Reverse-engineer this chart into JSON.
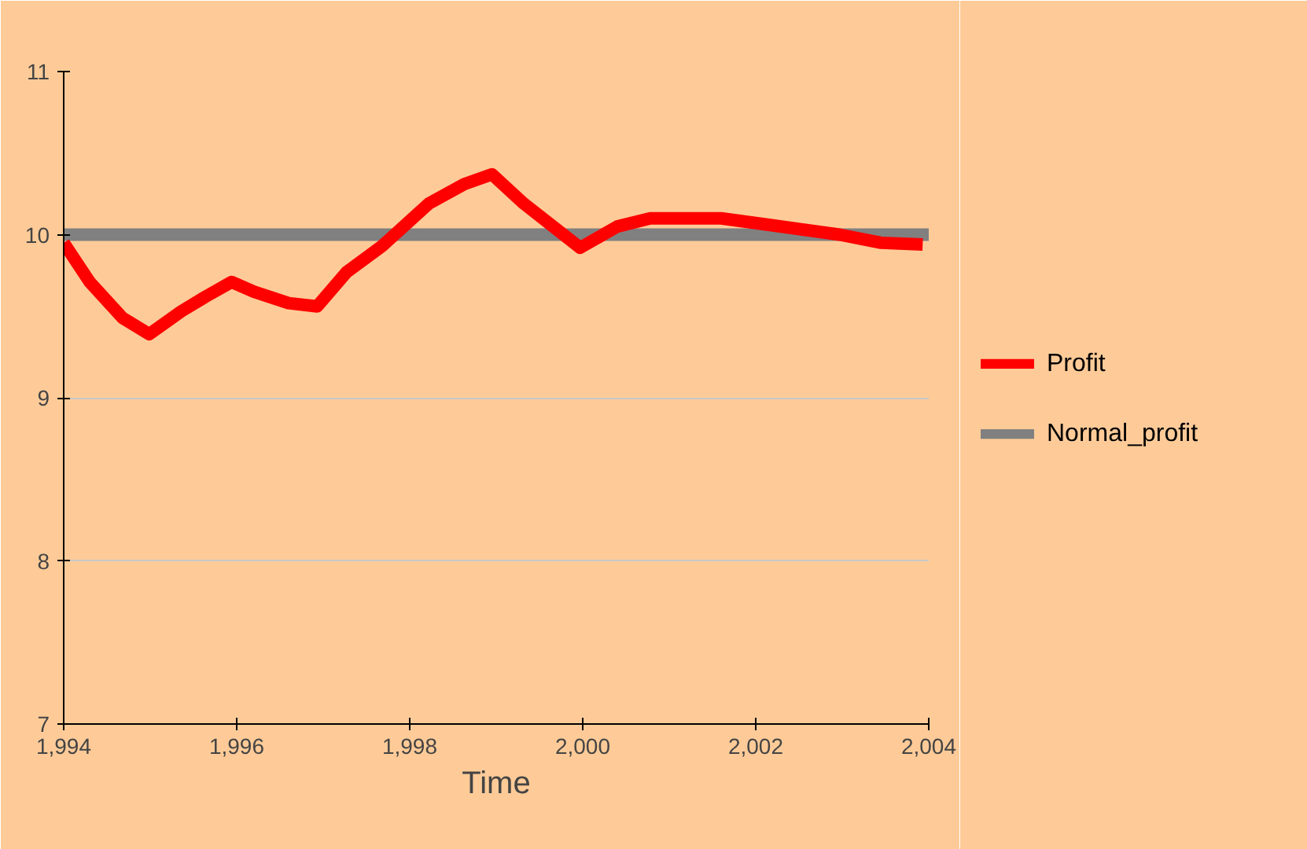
{
  "chart_data": {
    "type": "line",
    "xlabel": "Time",
    "xlim": [
      1994,
      2004
    ],
    "ylim": [
      7,
      11
    ],
    "xticks": [
      {
        "value": 1994,
        "label": "1,994"
      },
      {
        "value": 1996,
        "label": "1,996"
      },
      {
        "value": 1998,
        "label": "1,998"
      },
      {
        "value": 2000,
        "label": "2,000"
      },
      {
        "value": 2002,
        "label": "2,002"
      },
      {
        "value": 2004,
        "label": "2,004"
      }
    ],
    "yticks": [
      7,
      8,
      9,
      10,
      11
    ],
    "grid": "y",
    "legend": "right",
    "marker": "none",
    "line_style": "solid",
    "series": [
      {
        "name": "Profit",
        "color": "#ff0000",
        "x": [
          1994,
          1994.3,
          1994.68,
          1994.99,
          1995.36,
          1995.64,
          1995.94,
          1996.2,
          1996.6,
          1996.93,
          1997.27,
          1997.68,
          1998.22,
          1998.63,
          1998.95,
          1999.32,
          1999.97,
          2000.4,
          2000.78,
          2001.6,
          2002.15,
          2002.97,
          2003.45,
          2003.93
        ],
        "values": [
          9.95,
          9.71,
          9.49,
          9.39,
          9.53,
          9.62,
          9.71,
          9.65,
          9.58,
          9.56,
          9.77,
          9.93,
          10.19,
          10.31,
          10.37,
          10.19,
          9.92,
          10.05,
          10.1,
          10.1,
          10.06,
          10.0,
          9.95,
          9.94
        ]
      },
      {
        "name": "Normal_profit",
        "color": "#808080",
        "x": [
          1994,
          2004
        ],
        "values": [
          10,
          10
        ]
      }
    ]
  }
}
